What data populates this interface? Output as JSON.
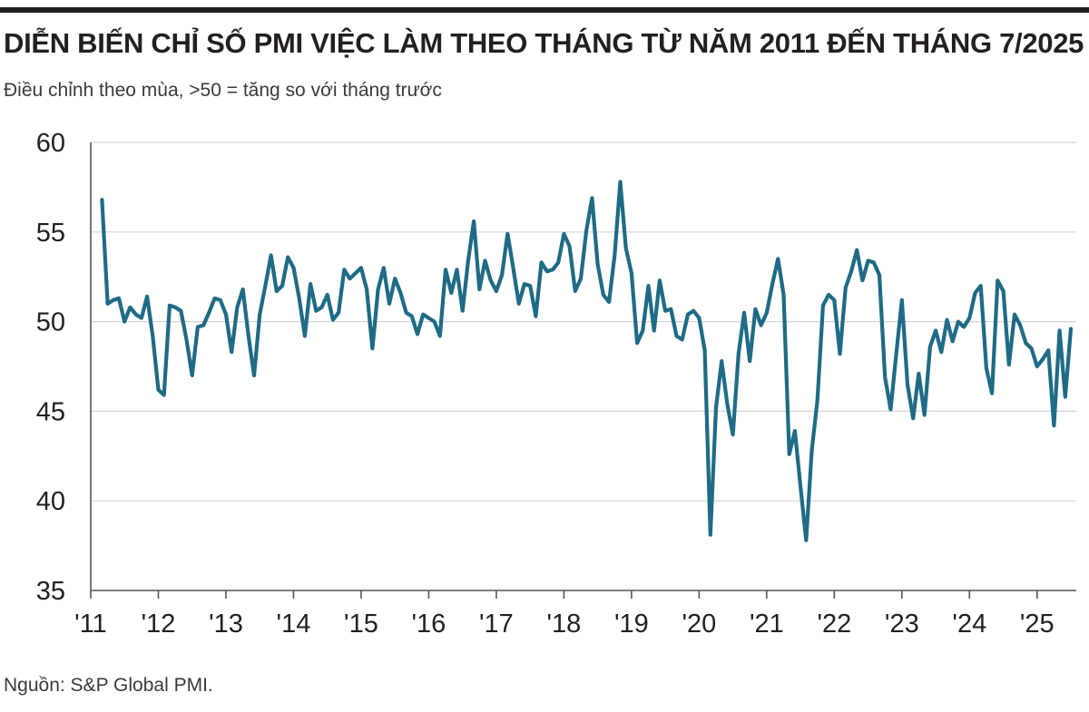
{
  "header": {
    "title": "DIỄN BIẾN CHỈ SỐ PMI VIỆC LÀM THEO THÁNG TỪ NĂM 2011 ĐẾN THÁNG 7/2025",
    "subtitle": "Điều chỉnh theo mùa, >50 = tăng so với tháng trước"
  },
  "footer": {
    "source": "Nguồn: S&P Global PMI."
  },
  "colors": {
    "line": "#1f6b85",
    "axis": "#555555",
    "grid": "#d6d6d6",
    "text": "#231f20"
  },
  "chart_data": {
    "type": "line",
    "title": "DIỄN BIẾN CHỈ SỐ PMI VIỆC LÀM THEO THÁNG TỪ NĂM 2011 ĐẾN THÁNG 7/2025",
    "subtitle": "Điều chỉnh theo mùa, >50 = tăng so với tháng trước",
    "xlabel": "",
    "ylabel": "",
    "ylim": [
      35,
      60
    ],
    "yticks": [
      35,
      40,
      45,
      50,
      55,
      60
    ],
    "xlim": [
      2011,
      2025.58
    ],
    "xtick_values": [
      2011,
      2012,
      2013,
      2014,
      2015,
      2016,
      2017,
      2018,
      2019,
      2020,
      2021,
      2022,
      2023,
      2024,
      2025
    ],
    "xtick_labels": [
      "'11",
      "'12",
      "'13",
      "'14",
      "'15",
      "'16",
      "'17",
      "'18",
      "'19",
      "'20",
      "'21",
      "'22",
      "'23",
      "'24",
      "'25"
    ],
    "grid": "horizontal",
    "series": [
      {
        "name": "PMI việc làm",
        "start": "2011-03",
        "values": [
          56.8,
          51.0,
          51.2,
          51.3,
          50.0,
          50.8,
          50.4,
          50.2,
          51.4,
          49.2,
          46.2,
          45.9,
          50.9,
          50.8,
          50.6,
          49.0,
          47.0,
          49.7,
          49.8,
          50.5,
          51.3,
          51.2,
          50.4,
          48.3,
          50.8,
          51.8,
          49.2,
          47.0,
          50.4,
          52.0,
          53.7,
          51.7,
          52.0,
          53.6,
          53.0,
          51.3,
          49.2,
          52.1,
          50.6,
          50.8,
          51.5,
          50.1,
          50.5,
          52.9,
          52.4,
          52.7,
          53.0,
          51.8,
          48.5,
          51.8,
          53.0,
          51.0,
          52.4,
          51.6,
          50.5,
          50.3,
          49.3,
          50.4,
          50.2,
          50.0,
          49.2,
          52.9,
          51.6,
          52.9,
          50.6,
          53.4,
          55.6,
          51.8,
          53.4,
          52.3,
          51.7,
          52.6,
          54.9,
          53.0,
          51.0,
          52.1,
          52.0,
          50.3,
          53.3,
          52.8,
          52.9,
          53.3,
          54.9,
          54.2,
          51.7,
          52.4,
          55.1,
          56.9,
          53.2,
          51.5,
          51.1,
          53.7,
          57.8,
          54.1,
          52.7,
          48.8,
          49.5,
          52.0,
          49.5,
          52.3,
          50.6,
          50.7,
          49.2,
          49.0,
          50.4,
          50.6,
          50.2,
          48.4,
          38.1,
          45.2,
          47.8,
          45.4,
          43.7,
          48.2,
          50.5,
          47.8,
          50.7,
          49.8,
          50.5,
          52.1,
          53.5,
          51.5,
          42.6,
          43.9,
          40.8,
          37.8,
          42.8,
          45.6,
          50.9,
          51.5,
          51.2,
          48.2,
          51.9,
          52.8,
          54.0,
          52.3,
          53.4,
          53.3,
          52.6,
          46.9,
          45.1,
          48.2,
          51.2,
          46.5,
          44.6,
          47.1,
          44.8,
          48.6,
          49.5,
          48.3,
          50.1,
          48.9,
          50.0,
          49.7,
          50.2,
          51.6,
          52.0,
          47.4,
          46.0,
          52.3,
          51.7,
          47.6,
          50.4,
          49.8,
          48.8,
          48.5,
          47.5,
          47.9,
          48.4,
          44.2,
          49.5,
          45.8,
          49.6
        ]
      }
    ]
  }
}
